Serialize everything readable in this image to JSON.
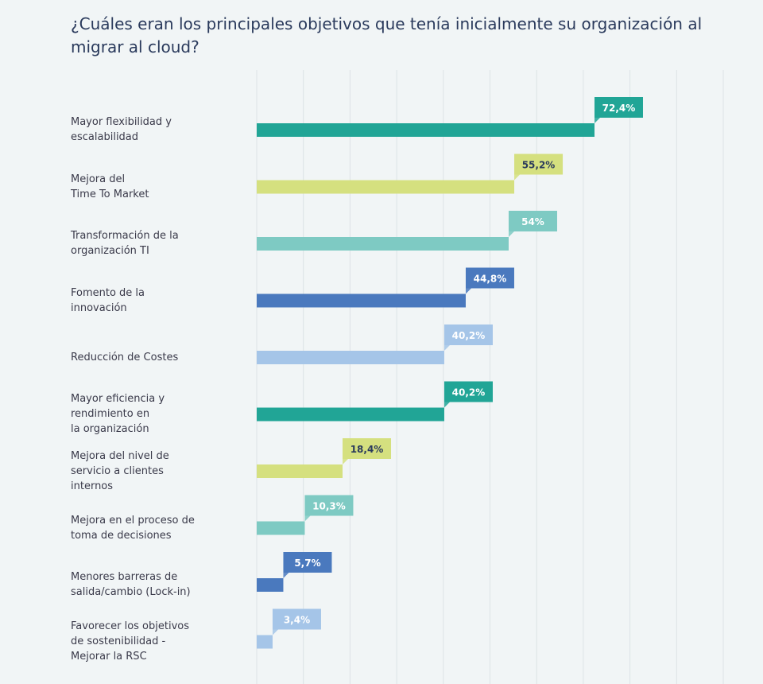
{
  "chart_data": {
    "type": "bar",
    "orientation": "horizontal",
    "title": "¿Cuáles eran los principales objetivos que tenía inicialmente su organización al migrar al cloud?",
    "xlim": [
      0,
      100
    ],
    "grid": true,
    "categories": [
      "Mayor flexibilidad y\nescalabilidad",
      "Mejora del\nTime To Market",
      "Transformación de la\norganización TI",
      "Fomento de la\ninnovación",
      "Reducción de Costes",
      "Mayor eficiencia y\nrendimiento en\nla organización",
      "Mejora del nivel de\nservicio a clientes\ninternos",
      "Mejora en el proceso de\ntoma de decisiones",
      "Menores barreras de\nsalida/cambio (Lock-in)",
      "Favorecer los objetivos\nde sostenibilidad -\nMejorar la RSC"
    ],
    "values": [
      72.4,
      55.2,
      54,
      44.8,
      40.2,
      40.2,
      18.4,
      10.3,
      5.7,
      3.4
    ],
    "data_labels": [
      "72,4%",
      "55,2%",
      "54%",
      "44,8%",
      "40,2%",
      "40,2%",
      "18,4%",
      "10,3%",
      "5,7%",
      "3,4%"
    ],
    "colors": [
      "#21a596",
      "#d5e07f",
      "#7ecac3",
      "#4a79be",
      "#a5c5e8",
      "#21a596",
      "#d5e07f",
      "#7ecac3",
      "#4a79be",
      "#a5c5e8"
    ],
    "label_text_colors": [
      "#ffffff",
      "#2a3a5c",
      "#ffffff",
      "#ffffff",
      "#ffffff",
      "#ffffff",
      "#2a3a5c",
      "#ffffff",
      "#ffffff",
      "#ffffff"
    ]
  }
}
